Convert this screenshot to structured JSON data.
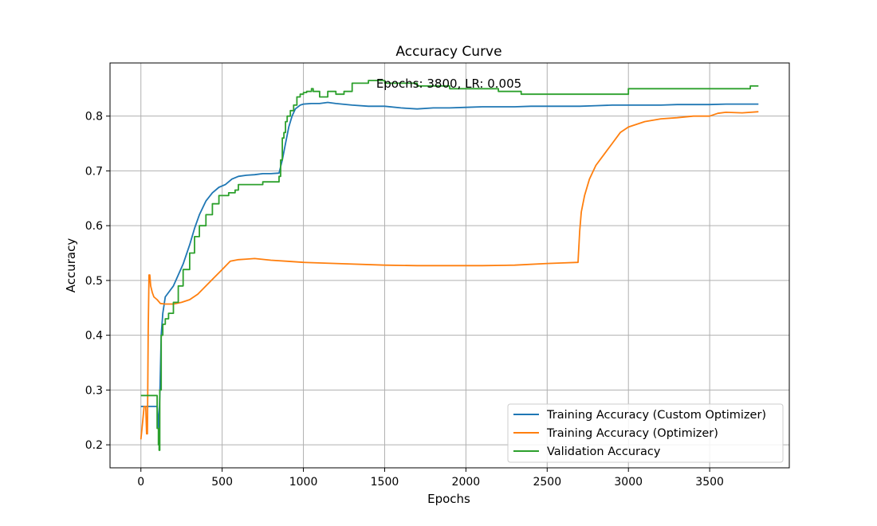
{
  "chart_data": {
    "type": "line",
    "title": "Accuracy Curve",
    "annotation": "Epochs: 3800, LR: 0.005",
    "xlabel": "Epochs",
    "ylabel": "Accuracy",
    "xlim": [
      -190,
      3990
    ],
    "ylim": [
      0.158,
      0.897
    ],
    "xticks": [
      0,
      500,
      1000,
      1500,
      2000,
      2500,
      3000,
      3500
    ],
    "yticks": [
      0.2,
      0.3,
      0.4,
      0.5,
      0.6,
      0.7,
      0.8
    ],
    "grid": true,
    "legend_position": "lower-right",
    "series": [
      {
        "name": "Training Accuracy (Custom Optimizer)",
        "color": "#1f77b4",
        "style": "line",
        "x": [
          0,
          20,
          40,
          60,
          80,
          100,
          110,
          118,
          125,
          135,
          150,
          170,
          200,
          230,
          260,
          300,
          330,
          360,
          400,
          440,
          480,
          520,
          560,
          600,
          650,
          700,
          750,
          800,
          850,
          870,
          890,
          910,
          930,
          950,
          980,
          1000,
          1050,
          1100,
          1150,
          1200,
          1300,
          1400,
          1500,
          1600,
          1700,
          1800,
          1900,
          2000,
          2100,
          2200,
          2300,
          2400,
          2500,
          2600,
          2700,
          2800,
          2900,
          3000,
          3100,
          3200,
          3300,
          3400,
          3500,
          3600,
          3700,
          3800
        ],
        "y": [
          0.27,
          0.27,
          0.27,
          0.27,
          0.27,
          0.27,
          0.23,
          0.31,
          0.4,
          0.44,
          0.47,
          0.478,
          0.49,
          0.51,
          0.53,
          0.565,
          0.595,
          0.62,
          0.645,
          0.66,
          0.67,
          0.675,
          0.685,
          0.69,
          0.692,
          0.693,
          0.695,
          0.695,
          0.696,
          0.72,
          0.75,
          0.78,
          0.8,
          0.813,
          0.82,
          0.822,
          0.823,
          0.823,
          0.825,
          0.823,
          0.82,
          0.818,
          0.818,
          0.815,
          0.813,
          0.815,
          0.815,
          0.816,
          0.817,
          0.817,
          0.817,
          0.818,
          0.818,
          0.818,
          0.818,
          0.819,
          0.82,
          0.82,
          0.82,
          0.82,
          0.821,
          0.821,
          0.821,
          0.822,
          0.822,
          0.822
        ]
      },
      {
        "name": "Training Accuracy (Optimizer)",
        "color": "#ff7f0e",
        "style": "line",
        "x": [
          0,
          10,
          20,
          30,
          35,
          40,
          45,
          50,
          55,
          60,
          70,
          80,
          100,
          120,
          150,
          200,
          250,
          300,
          350,
          400,
          450,
          500,
          550,
          600,
          650,
          700,
          800,
          900,
          1000,
          1200,
          1500,
          1700,
          1900,
          2100,
          2300,
          2500,
          2600,
          2690,
          2700,
          2710,
          2730,
          2760,
          2800,
          2850,
          2900,
          2950,
          3000,
          3050,
          3100,
          3200,
          3300,
          3400,
          3500,
          3550,
          3600,
          3700,
          3800
        ],
        "y": [
          0.21,
          0.24,
          0.27,
          0.27,
          0.22,
          0.22,
          0.41,
          0.51,
          0.51,
          0.49,
          0.478,
          0.47,
          0.465,
          0.458,
          0.457,
          0.457,
          0.46,
          0.465,
          0.475,
          0.49,
          0.505,
          0.52,
          0.535,
          0.538,
          0.539,
          0.54,
          0.537,
          0.535,
          0.533,
          0.531,
          0.528,
          0.527,
          0.527,
          0.527,
          0.528,
          0.531,
          0.532,
          0.533,
          0.59,
          0.625,
          0.655,
          0.685,
          0.71,
          0.73,
          0.75,
          0.77,
          0.78,
          0.785,
          0.79,
          0.795,
          0.797,
          0.8,
          0.8,
          0.805,
          0.807,
          0.806,
          0.808
        ]
      },
      {
        "name": "Validation Accuracy",
        "color": "#2ca02c",
        "style": "step",
        "x": [
          0,
          90,
          100,
          108,
          112,
          116,
          125,
          135,
          150,
          170,
          200,
          230,
          260,
          300,
          330,
          360,
          400,
          440,
          480,
          500,
          540,
          580,
          600,
          650,
          700,
          750,
          800,
          840,
          850,
          860,
          870,
          880,
          890,
          900,
          920,
          940,
          960,
          980,
          1000,
          1020,
          1040,
          1050,
          1060,
          1100,
          1150,
          1200,
          1250,
          1300,
          1400,
          1500,
          1600,
          1700,
          1800,
          1900,
          2000,
          2100,
          2200,
          2300,
          2340,
          2500,
          2700,
          2960,
          3000,
          3500,
          3700,
          3750,
          3800
        ],
        "y": [
          0.29,
          0.29,
          0.23,
          0.2,
          0.19,
          0.3,
          0.4,
          0.42,
          0.43,
          0.44,
          0.46,
          0.49,
          0.52,
          0.55,
          0.58,
          0.6,
          0.62,
          0.64,
          0.655,
          0.655,
          0.66,
          0.665,
          0.675,
          0.675,
          0.675,
          0.68,
          0.68,
          0.68,
          0.69,
          0.72,
          0.76,
          0.77,
          0.79,
          0.8,
          0.81,
          0.82,
          0.835,
          0.84,
          0.843,
          0.845,
          0.845,
          0.85,
          0.845,
          0.835,
          0.845,
          0.84,
          0.845,
          0.86,
          0.865,
          0.86,
          0.86,
          0.855,
          0.855,
          0.85,
          0.85,
          0.85,
          0.845,
          0.845,
          0.84,
          0.84,
          0.84,
          0.84,
          0.85,
          0.85,
          0.85,
          0.855,
          0.855
        ]
      }
    ]
  }
}
